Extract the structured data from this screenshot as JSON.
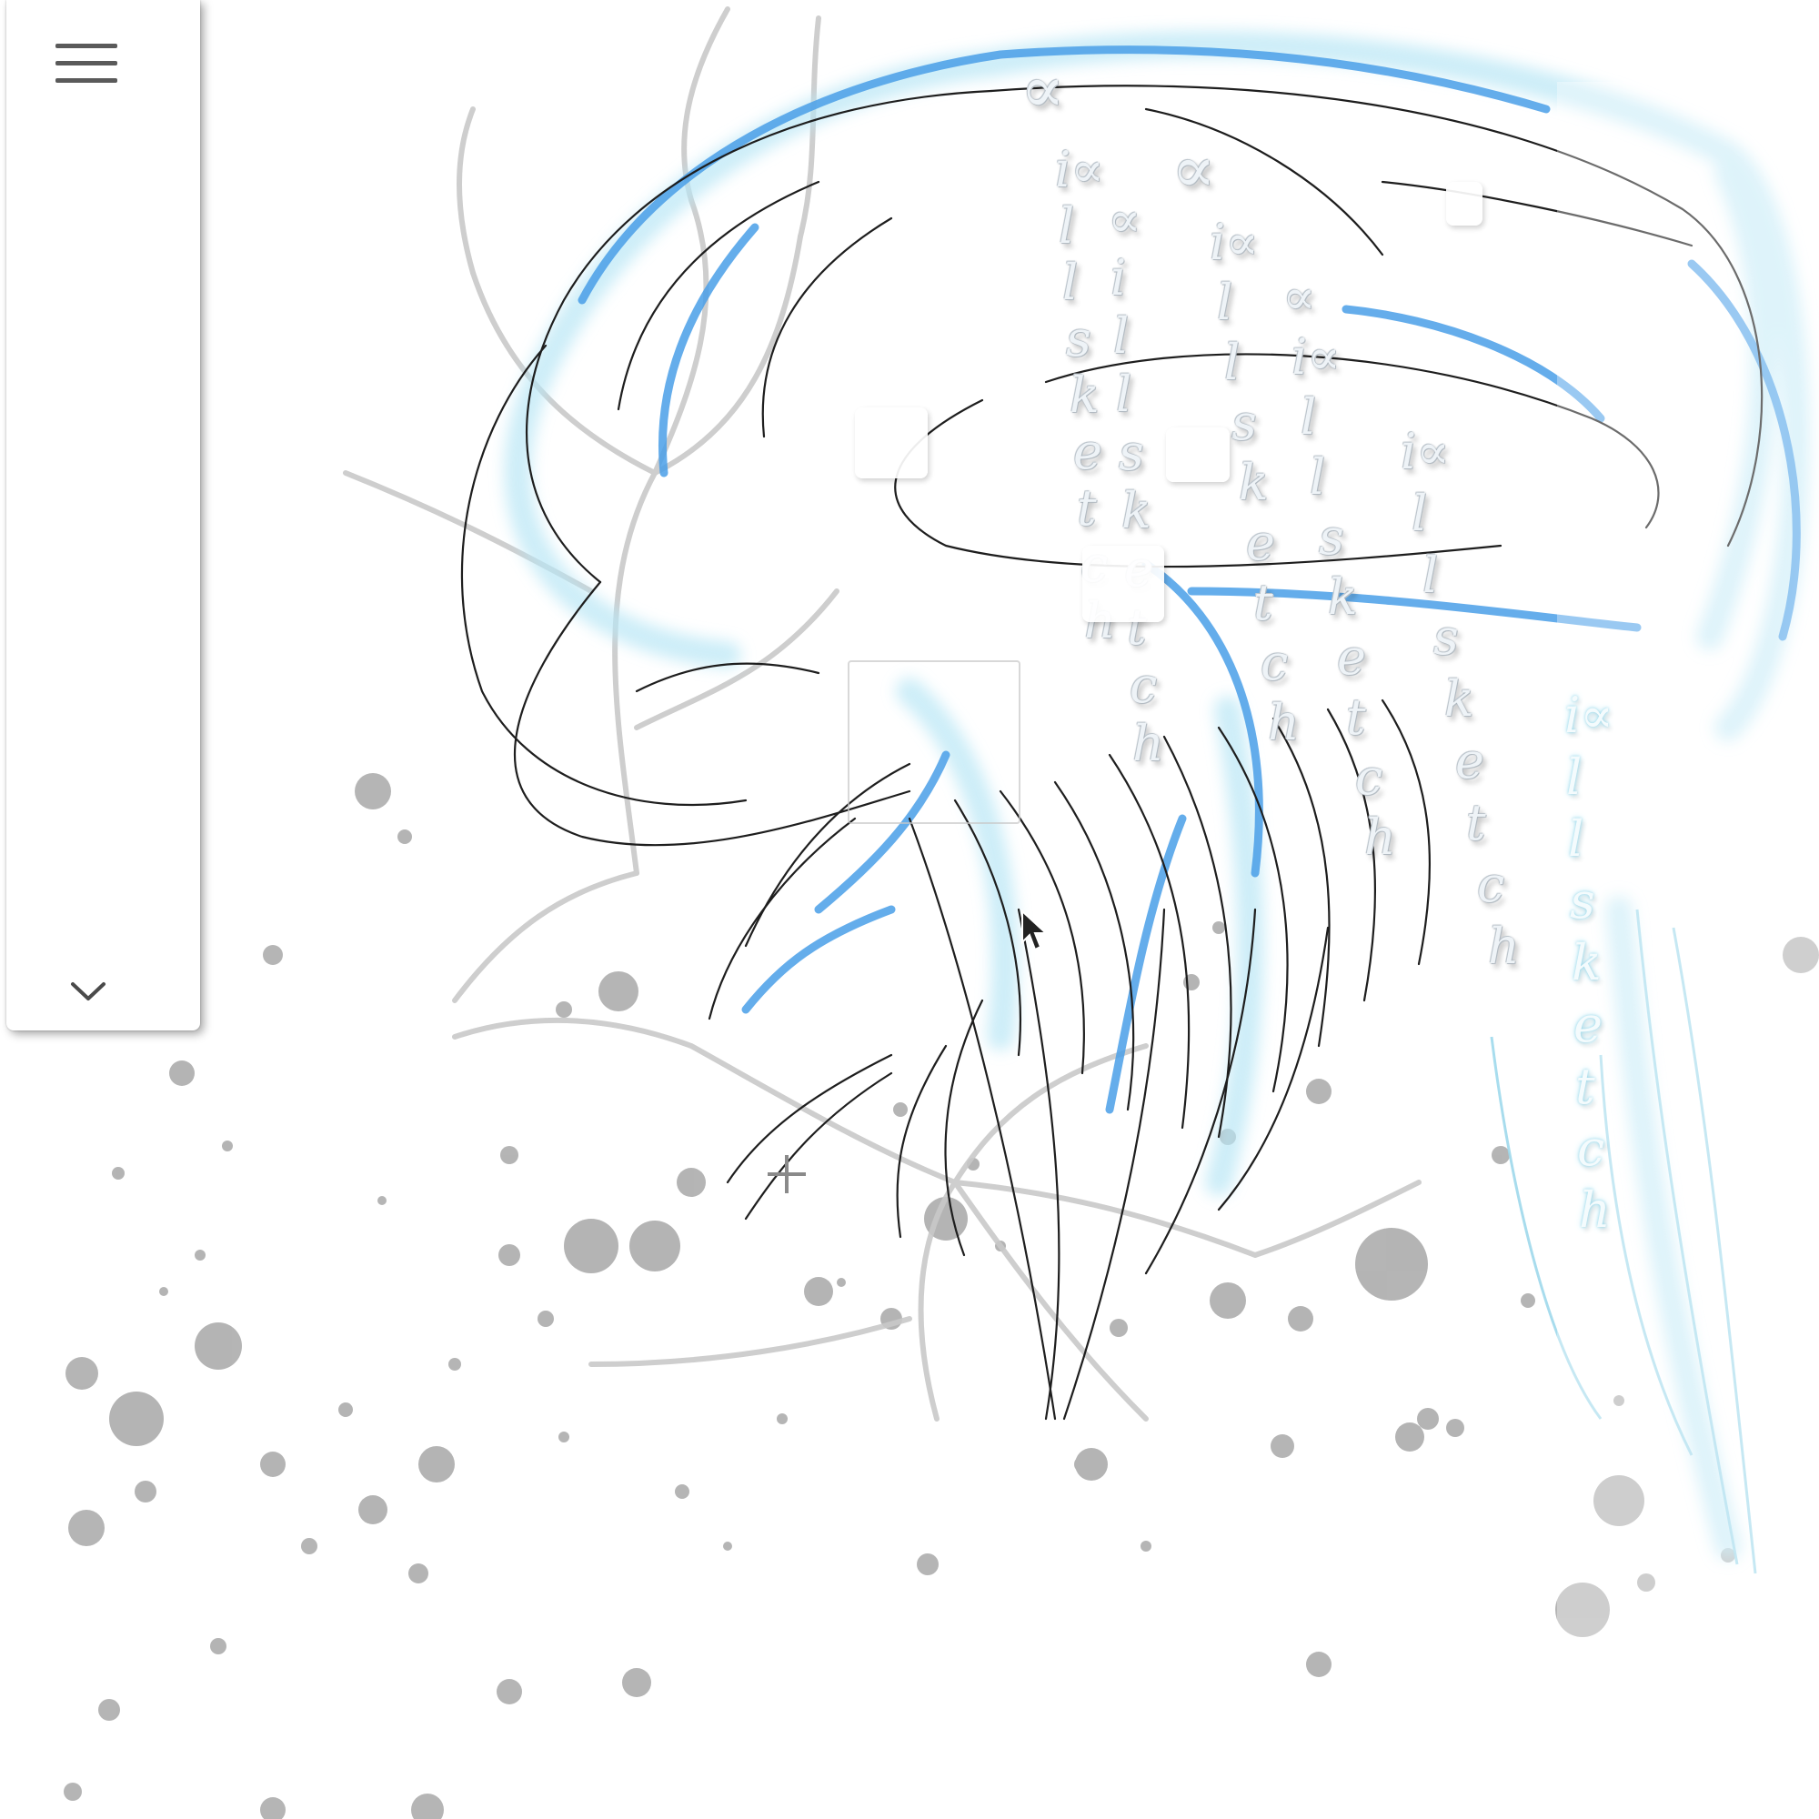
{
  "toolbar": {
    "menu_icon": "hamburger-menu-icon",
    "expand_icon": "chevron-down-icon"
  },
  "canvas": {
    "accent_color": "#4a9fe8",
    "glow_color": "#b8e6f5",
    "stroke_color": "#1e1e1e",
    "splatter_color": "#9e9e9e"
  },
  "artwork_text": {
    "glyph_symbol": "∝",
    "sequence_1": [
      "i∝",
      "l",
      "l",
      "s",
      "k",
      "e",
      "t",
      "c",
      "h"
    ],
    "sequence_2": [
      "∝",
      "i",
      "l",
      "l",
      "s",
      "k",
      "e",
      "t",
      "c",
      "h"
    ],
    "sequence_3": [
      "i∝",
      "l",
      "l",
      "s",
      "k",
      "e",
      "t",
      "c",
      "h"
    ],
    "sequence_4": [
      "∝",
      "i∝",
      "l",
      "l",
      "s",
      "k",
      "e",
      "t",
      "c",
      "h"
    ],
    "sequence_5": [
      "i∝",
      "l",
      "l",
      "s",
      "k",
      "e",
      "t",
      "c",
      "h"
    ],
    "sequence_6": [
      "i∝",
      "l",
      "l",
      "s",
      "k",
      "e",
      "t",
      "c",
      "h"
    ]
  }
}
